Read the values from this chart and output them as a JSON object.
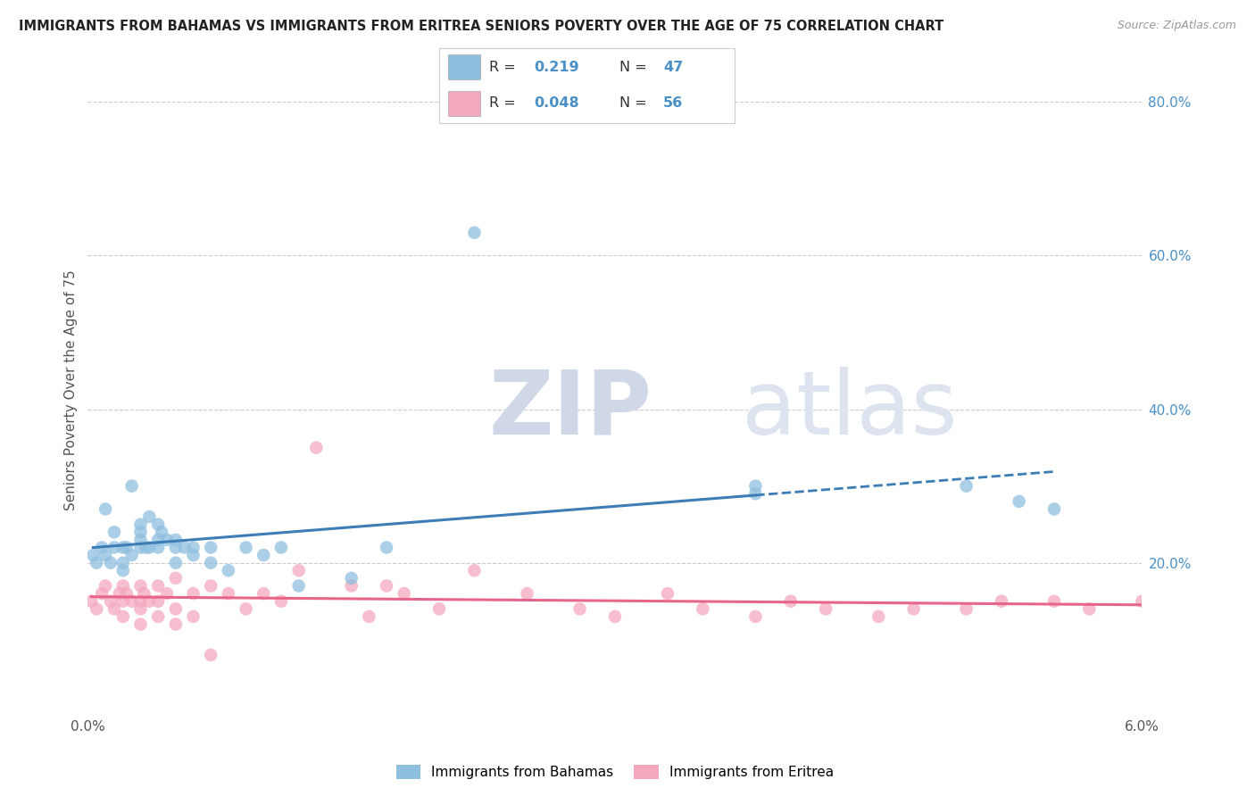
{
  "title": "IMMIGRANTS FROM BAHAMAS VS IMMIGRANTS FROM ERITREA SENIORS POVERTY OVER THE AGE OF 75 CORRELATION CHART",
  "source": "Source: ZipAtlas.com",
  "ylabel": "Seniors Poverty Over the Age of 75",
  "xlim": [
    0.0,
    0.06
  ],
  "ylim": [
    0.0,
    0.85
  ],
  "bahamas_R": 0.219,
  "bahamas_N": 47,
  "eritrea_R": 0.048,
  "eritrea_N": 56,
  "bahamas_color": "#8fbfdf",
  "eritrea_color": "#f4a8be",
  "bahamas_line_color": "#3d7db5",
  "eritrea_line_color": "#e8658a",
  "watermark_zip": "ZIP",
  "watermark_atlas": "atlas",
  "legend_labels": [
    "Immigrants from Bahamas",
    "Immigrants from Eritrea"
  ],
  "bahamas_x": [
    0.0003,
    0.0005,
    0.0008,
    0.001,
    0.001,
    0.0013,
    0.0015,
    0.0015,
    0.002,
    0.002,
    0.002,
    0.0022,
    0.0025,
    0.0025,
    0.003,
    0.003,
    0.003,
    0.003,
    0.0033,
    0.0035,
    0.0035,
    0.004,
    0.004,
    0.004,
    0.0042,
    0.0045,
    0.005,
    0.005,
    0.005,
    0.0055,
    0.006,
    0.006,
    0.007,
    0.007,
    0.008,
    0.009,
    0.01,
    0.011,
    0.012,
    0.015,
    0.017,
    0.022,
    0.038,
    0.038,
    0.05,
    0.053,
    0.055
  ],
  "bahamas_y": [
    0.21,
    0.2,
    0.22,
    0.21,
    0.27,
    0.2,
    0.24,
    0.22,
    0.22,
    0.2,
    0.19,
    0.22,
    0.21,
    0.3,
    0.25,
    0.24,
    0.23,
    0.22,
    0.22,
    0.26,
    0.22,
    0.25,
    0.23,
    0.22,
    0.24,
    0.23,
    0.23,
    0.22,
    0.2,
    0.22,
    0.22,
    0.21,
    0.22,
    0.2,
    0.19,
    0.22,
    0.21,
    0.22,
    0.17,
    0.18,
    0.22,
    0.63,
    0.3,
    0.29,
    0.3,
    0.28,
    0.27
  ],
  "eritrea_x": [
    0.0002,
    0.0005,
    0.0008,
    0.001,
    0.0013,
    0.0015,
    0.0018,
    0.002,
    0.002,
    0.002,
    0.0022,
    0.0025,
    0.003,
    0.003,
    0.003,
    0.003,
    0.0032,
    0.0035,
    0.004,
    0.004,
    0.004,
    0.0045,
    0.005,
    0.005,
    0.005,
    0.006,
    0.006,
    0.007,
    0.007,
    0.008,
    0.009,
    0.01,
    0.011,
    0.012,
    0.013,
    0.015,
    0.016,
    0.017,
    0.018,
    0.02,
    0.022,
    0.025,
    0.028,
    0.03,
    0.033,
    0.035,
    0.038,
    0.04,
    0.042,
    0.045,
    0.047,
    0.05,
    0.052,
    0.055,
    0.057,
    0.06
  ],
  "eritrea_y": [
    0.15,
    0.14,
    0.16,
    0.17,
    0.15,
    0.14,
    0.16,
    0.17,
    0.15,
    0.13,
    0.16,
    0.15,
    0.17,
    0.15,
    0.14,
    0.12,
    0.16,
    0.15,
    0.17,
    0.15,
    0.13,
    0.16,
    0.18,
    0.14,
    0.12,
    0.16,
    0.13,
    0.17,
    0.08,
    0.16,
    0.14,
    0.16,
    0.15,
    0.19,
    0.35,
    0.17,
    0.13,
    0.17,
    0.16,
    0.14,
    0.19,
    0.16,
    0.14,
    0.13,
    0.16,
    0.14,
    0.13,
    0.15,
    0.14,
    0.13,
    0.14,
    0.14,
    0.15,
    0.15,
    0.14,
    0.15
  ]
}
